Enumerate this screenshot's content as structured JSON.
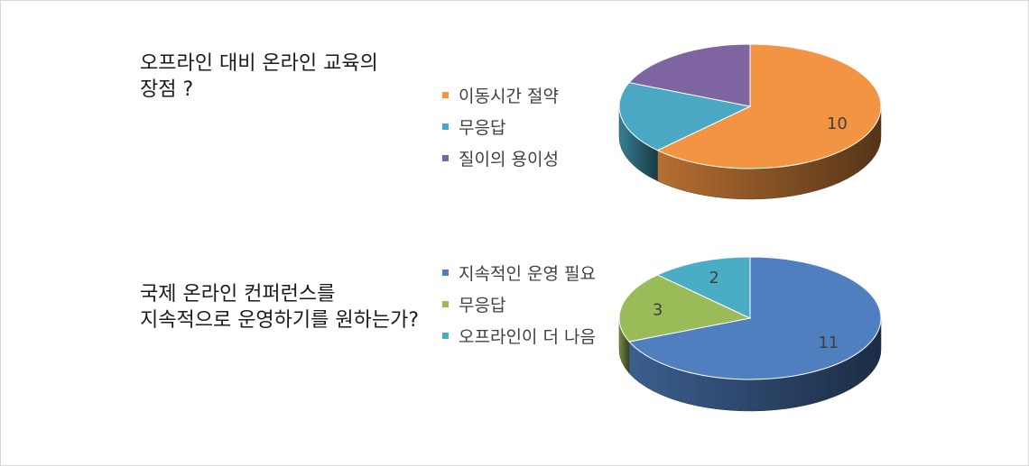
{
  "charts": [
    {
      "question_lines": [
        "오프라인 대비 온라인 교육의",
        "장점 ?"
      ],
      "legend": [
        {
          "label": "이동시간 절약",
          "color": "#f39443"
        },
        {
          "label": "무응답",
          "color": "#4aa8c4"
        },
        {
          "label": "질이의 용이성",
          "color": "#7f64a2"
        }
      ]
    },
    {
      "question_lines": [
        "국제 온라인 컨퍼런스를",
        "지속적으로 운영하기를 원하는가?"
      ],
      "legend": [
        {
          "label": "지속적인 운영 필요",
          "color": "#4f7fbe"
        },
        {
          "label": "무응답",
          "color": "#9bbb59"
        },
        {
          "label": "오프라인이 더 나음",
          "color": "#4bacc6"
        }
      ]
    }
  ],
  "chart_data": [
    {
      "type": "pie",
      "title": "오프라인 대비 온라인 교육의 장점 ?",
      "series": [
        {
          "values": [
            10,
            3,
            3
          ]
        }
      ],
      "categories": [
        "이동시간 절약",
        "무응답",
        "질이의 용이성"
      ],
      "data_labels": [
        "10",
        "",
        ""
      ],
      "style": "3d",
      "legend_position": "left"
    },
    {
      "type": "pie",
      "title": "국제 온라인 컨퍼런스를 지속적으로 운영하기를 원하는가?",
      "series": [
        {
          "values": [
            11,
            3,
            2
          ]
        }
      ],
      "categories": [
        "지속적인 운영 필요",
        "무응답",
        "오프라인이 더 나음"
      ],
      "data_labels": [
        "11",
        "3",
        "2"
      ],
      "style": "3d",
      "legend_position": "left"
    }
  ]
}
